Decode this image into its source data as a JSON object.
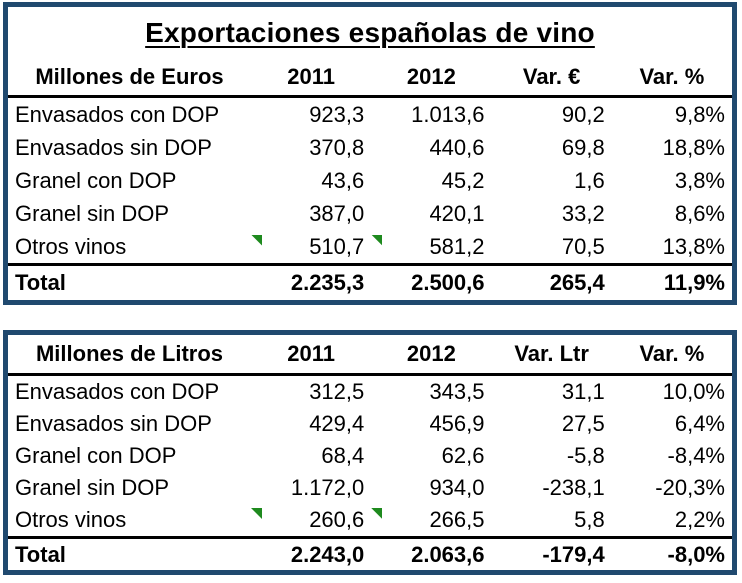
{
  "title": "Exportaciones españolas de vino",
  "colors": {
    "table_border": "#20496F",
    "flag": "#1E8A1E",
    "separator": "#000000"
  },
  "tables": [
    {
      "unit_header": "Millones de Euros",
      "col_headers": [
        "2011",
        "2012",
        "Var. €",
        "Var. %"
      ],
      "rows": [
        {
          "label": "Envasados con DOP",
          "v2011": "923,3",
          "v2012": "1.013,6",
          "var": "90,2",
          "var_pct": "9,8%"
        },
        {
          "label": "Envasados sin DOP",
          "v2011": "370,8",
          "v2012": "440,6",
          "var": "69,8",
          "var_pct": "18,8%"
        },
        {
          "label": "Granel con DOP",
          "v2011": "43,6",
          "v2012": "45,2",
          "var": "1,6",
          "var_pct": "3,8%"
        },
        {
          "label": "Granel sin DOP",
          "v2011": "387,0",
          "v2012": "420,1",
          "var": "33,2",
          "var_pct": "8,6%"
        },
        {
          "label": "Otros vinos",
          "v2011": "510,7",
          "v2012": "581,2",
          "var": "70,5",
          "var_pct": "13,8%"
        }
      ],
      "total": {
        "label": "Total",
        "v2011": "2.235,3",
        "v2012": "2.500,6",
        "var": "265,4",
        "var_pct": "11,9%"
      }
    },
    {
      "unit_header": "Millones de Litros",
      "col_headers": [
        "2011",
        "2012",
        "Var. Ltr",
        "Var. %"
      ],
      "rows": [
        {
          "label": "Envasados con DOP",
          "v2011": "312,5",
          "v2012": "343,5",
          "var": "31,1",
          "var_pct": "10,0%"
        },
        {
          "label": "Envasados sin DOP",
          "v2011": "429,4",
          "v2012": "456,9",
          "var": "27,5",
          "var_pct": "6,4%"
        },
        {
          "label": "Granel con DOP",
          "v2011": "68,4",
          "v2012": "62,6",
          "var": "-5,8",
          "var_pct": "-8,4%"
        },
        {
          "label": "Granel sin DOP",
          "v2011": "1.172,0",
          "v2012": "934,0",
          "var": "-238,1",
          "var_pct": "-20,3%"
        },
        {
          "label": "Otros vinos",
          "v2011": "260,6",
          "v2012": "266,5",
          "var": "5,8",
          "var_pct": "2,2%"
        }
      ],
      "total": {
        "label": "Total",
        "v2011": "2.243,0",
        "v2012": "2.063,6",
        "var": "-179,4",
        "var_pct": "-8,0%"
      }
    }
  ]
}
